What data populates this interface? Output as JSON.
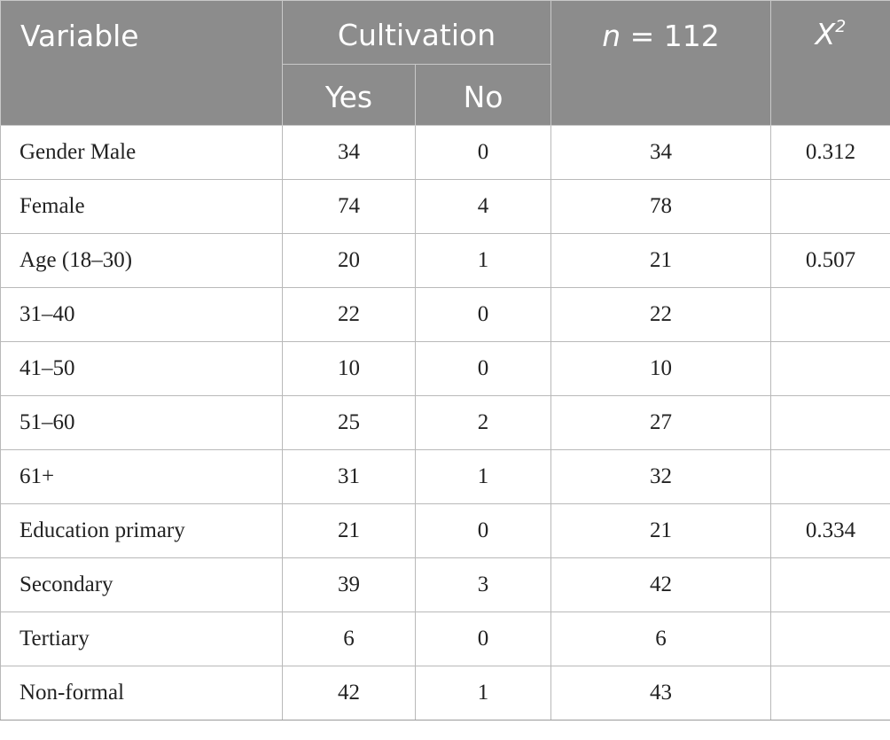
{
  "header": {
    "variable": "Variable",
    "cultivation": "Cultivation",
    "yes": "Yes",
    "no": "No",
    "n_italic": "n",
    "n_rest": " = 112",
    "x2_base": "X",
    "x2_sup": "2"
  },
  "rows": [
    {
      "label": "Gender Male",
      "yes": "34",
      "no": "0",
      "n": "34",
      "x2": "0.312"
    },
    {
      "label": "Female",
      "yes": "74",
      "no": "4",
      "n": "78",
      "x2": ""
    },
    {
      "label": "Age (18–30)",
      "yes": "20",
      "no": "1",
      "n": "21",
      "x2": "0.507"
    },
    {
      "label": "31–40",
      "yes": "22",
      "no": "0",
      "n": "22",
      "x2": ""
    },
    {
      "label": "41–50",
      "yes": "10",
      "no": "0",
      "n": "10",
      "x2": ""
    },
    {
      "label": "51–60",
      "yes": "25",
      "no": "2",
      "n": "27",
      "x2": ""
    },
    {
      "label": "61+",
      "yes": "31",
      "no": "1",
      "n": "32",
      "x2": ""
    },
    {
      "label": "Education primary",
      "yes": "21",
      "no": "0",
      "n": "21",
      "x2": "0.334"
    },
    {
      "label": "Secondary",
      "yes": "39",
      "no": "3",
      "n": "42",
      "x2": ""
    },
    {
      "label": "Tertiary",
      "yes": "6",
      "no": "0",
      "n": "6",
      "x2": ""
    },
    {
      "label": "Non-formal",
      "yes": "42",
      "no": "1",
      "n": "43",
      "x2": ""
    }
  ],
  "colors": {
    "header_bg": "#8c8c8c",
    "header_text": "#ffffff",
    "grid": "#b9b9b9"
  }
}
